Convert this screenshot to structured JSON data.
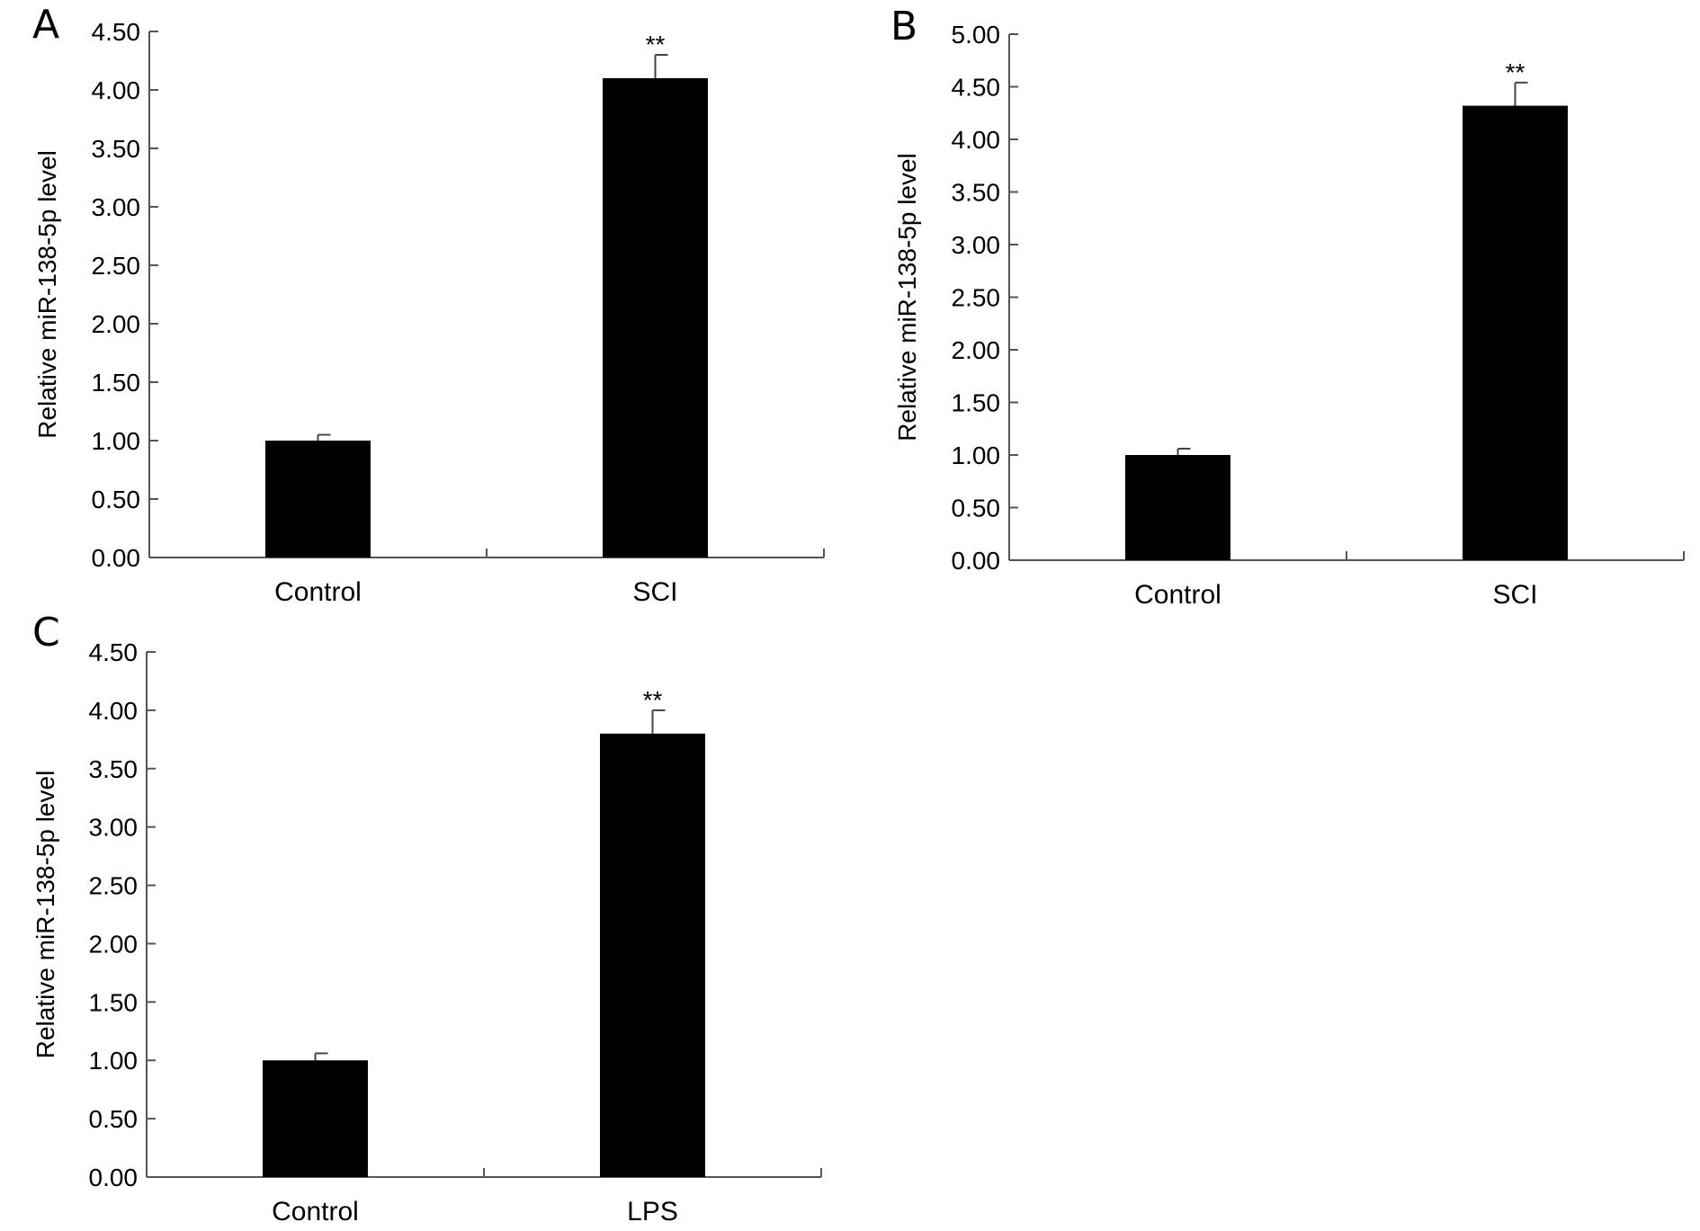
{
  "chart_data": [
    {
      "panel": "A",
      "type": "bar",
      "categories": [
        "Control",
        "SCI"
      ],
      "values": [
        1.0,
        4.1
      ],
      "errors": [
        0.05,
        0.2
      ],
      "annotations": [
        "",
        "**"
      ],
      "ylabel": "Relative miR-138-5p level",
      "xlabel": "",
      "ylim": [
        0,
        4.5
      ],
      "yticks": [
        "0.00",
        "0.50",
        "1.00",
        "1.50",
        "2.00",
        "2.50",
        "3.00",
        "3.50",
        "4.00",
        "4.50"
      ],
      "bar_color": "#000000"
    },
    {
      "panel": "B",
      "type": "bar",
      "categories": [
        "Control",
        "SCI"
      ],
      "values": [
        1.0,
        4.32
      ],
      "errors": [
        0.06,
        0.22
      ],
      "annotations": [
        "",
        "**"
      ],
      "ylabel": "Relative miR-138-5p level",
      "xlabel": "",
      "ylim": [
        0,
        5.0
      ],
      "yticks": [
        "0.00",
        "0.50",
        "1.00",
        "1.50",
        "2.00",
        "2.50",
        "3.00",
        "3.50",
        "4.00",
        "4.50",
        "5.00"
      ],
      "bar_color": "#000000"
    },
    {
      "panel": "C",
      "type": "bar",
      "categories": [
        "Control",
        "LPS"
      ],
      "values": [
        1.0,
        3.8
      ],
      "errors": [
        0.06,
        0.2
      ],
      "annotations": [
        "",
        "**"
      ],
      "ylabel": "Relative miR-138-5p level",
      "xlabel": "",
      "ylim": [
        0,
        4.5
      ],
      "yticks": [
        "0.00",
        "0.50",
        "1.00",
        "1.50",
        "2.00",
        "2.50",
        "3.00",
        "3.50",
        "4.00",
        "4.50"
      ],
      "bar_color": "#000000"
    }
  ]
}
